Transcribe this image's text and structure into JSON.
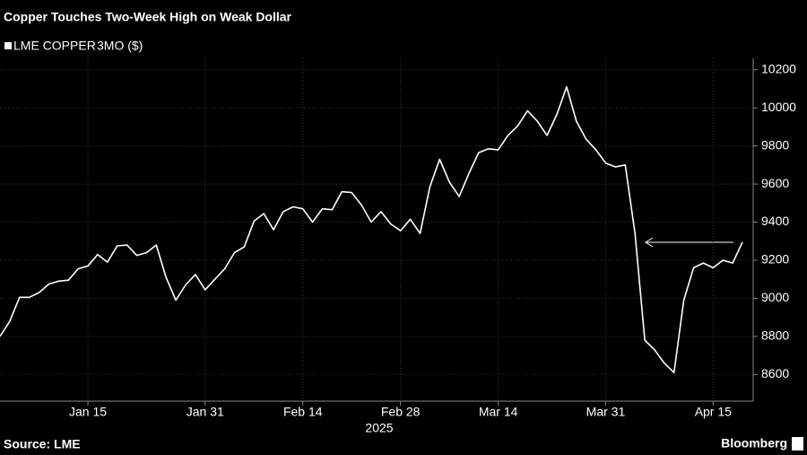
{
  "chart_data": {
    "type": "line",
    "title": "Copper Touches Two-Week High on Weak Dollar",
    "unit_label": "3MO ($)",
    "x": [
      "2025-01-02",
      "2025-01-03",
      "2025-01-06",
      "2025-01-07",
      "2025-01-08",
      "2025-01-09",
      "2025-01-10",
      "2025-01-13",
      "2025-01-14",
      "2025-01-15",
      "2025-01-16",
      "2025-01-17",
      "2025-01-20",
      "2025-01-21",
      "2025-01-22",
      "2025-01-23",
      "2025-01-24",
      "2025-01-27",
      "2025-01-28",
      "2025-01-29",
      "2025-01-30",
      "2025-01-31",
      "2025-02-03",
      "2025-02-04",
      "2025-02-05",
      "2025-02-06",
      "2025-02-07",
      "2025-02-10",
      "2025-02-11",
      "2025-02-12",
      "2025-02-13",
      "2025-02-14",
      "2025-02-17",
      "2025-02-18",
      "2025-02-19",
      "2025-02-20",
      "2025-02-21",
      "2025-02-24",
      "2025-02-25",
      "2025-02-26",
      "2025-02-27",
      "2025-02-28",
      "2025-03-03",
      "2025-03-04",
      "2025-03-05",
      "2025-03-06",
      "2025-03-07",
      "2025-03-10",
      "2025-03-11",
      "2025-03-12",
      "2025-03-13",
      "2025-03-14",
      "2025-03-17",
      "2025-03-18",
      "2025-03-19",
      "2025-03-20",
      "2025-03-21",
      "2025-03-24",
      "2025-03-25",
      "2025-03-26",
      "2025-03-27",
      "2025-03-28",
      "2025-03-31",
      "2025-04-01",
      "2025-04-02",
      "2025-04-03",
      "2025-04-04",
      "2025-04-07",
      "2025-04-08",
      "2025-04-09",
      "2025-04-10",
      "2025-04-11",
      "2025-04-14",
      "2025-04-15",
      "2025-04-16",
      "2025-04-17",
      "2025-04-18"
    ],
    "series": [
      {
        "name": "LME COPPER",
        "color": "#ffffff",
        "values": [
          8800,
          8880,
          9005,
          9005,
          9030,
          9075,
          9090,
          9095,
          9155,
          9170,
          9230,
          9190,
          9275,
          9280,
          9225,
          9240,
          9280,
          9110,
          8990,
          9070,
          9125,
          9045,
          9100,
          9155,
          9240,
          9270,
          9405,
          9445,
          9360,
          9455,
          9480,
          9470,
          9400,
          9470,
          9465,
          9560,
          9555,
          9490,
          9400,
          9455,
          9390,
          9355,
          9415,
          9340,
          9585,
          9730,
          9610,
          9535,
          9655,
          9765,
          9785,
          9780,
          9855,
          9905,
          9985,
          9930,
          9855,
          9965,
          10110,
          9930,
          9835,
          9780,
          9710,
          9690,
          9700,
          9340,
          8780,
          8730,
          8660,
          8610,
          8990,
          9160,
          9185,
          9160,
          9200,
          9185,
          9295
        ]
      }
    ],
    "xticks": [
      {
        "value": "2025-01-15",
        "label": "Jan 15"
      },
      {
        "value": "2025-01-31",
        "label": "Jan 31"
      },
      {
        "value": "2025-02-14",
        "label": "Feb 14"
      },
      {
        "value": "2025-02-28",
        "label": "Feb 28"
      },
      {
        "value": "2025-03-14",
        "label": "Mar 14"
      },
      {
        "value": "2025-03-31",
        "label": "Mar 31"
      },
      {
        "value": "2025-04-15",
        "label": "Apr 15"
      }
    ],
    "x_year_label": "2025",
    "ylim": [
      8460,
      10260
    ],
    "yticks": [
      8600,
      8800,
      9000,
      9200,
      9400,
      9600,
      9800,
      10000,
      10200
    ],
    "grid": true,
    "source": "Source: LME",
    "brand": "Bloomberg"
  }
}
